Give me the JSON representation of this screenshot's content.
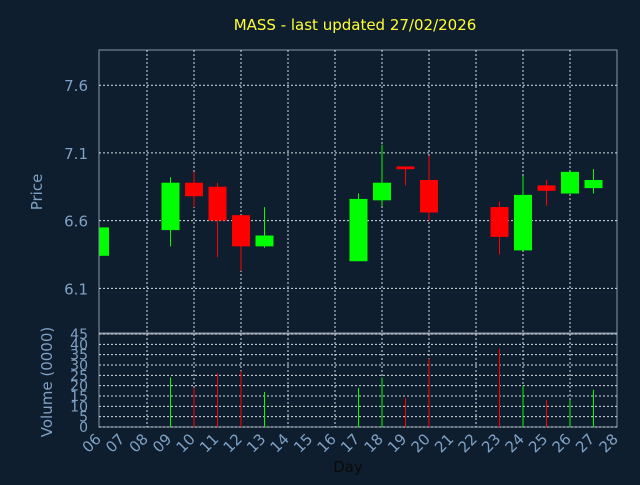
{
  "chart_data": {
    "type": "candlestick",
    "title": "MASS - last updated 27/02/2026",
    "xlabel": "Day",
    "price_panel": {
      "ylabel": "Price",
      "ylim": [
        5.77,
        7.86
      ],
      "yticks": [
        "6.1",
        "6.6",
        "7.1",
        "7.6"
      ],
      "grid": true
    },
    "volume_panel": {
      "ylabel": "Volume (0000)",
      "ylim": [
        0,
        45
      ],
      "yticks": [
        "0",
        "5",
        "10",
        "15",
        "20",
        "25",
        "30",
        "35",
        "40",
        "45"
      ],
      "grid": true
    },
    "x_ticks": [
      "06",
      "07",
      "08",
      "09",
      "10",
      "11",
      "12",
      "13",
      "14",
      "15",
      "16",
      "17",
      "18",
      "19",
      "20",
      "21",
      "22",
      "23",
      "24",
      "25",
      "26",
      "27",
      "28"
    ],
    "up_color": "#00ff00",
    "down_color": "#ff0000",
    "candles": [
      {
        "day": "06",
        "open": 6.34,
        "close": 6.55,
        "high": 6.55,
        "low": 6.34,
        "volume": 0
      },
      {
        "day": "09",
        "open": 6.53,
        "close": 6.88,
        "high": 6.92,
        "low": 6.41,
        "volume": 24
      },
      {
        "day": "10",
        "open": 6.88,
        "close": 6.78,
        "high": 6.96,
        "low": 6.7,
        "volume": 19
      },
      {
        "day": "11",
        "open": 6.85,
        "close": 6.6,
        "high": 6.88,
        "low": 6.33,
        "volume": 26
      },
      {
        "day": "12",
        "open": 6.64,
        "close": 6.41,
        "high": 6.64,
        "low": 6.23,
        "volume": 27
      },
      {
        "day": "13",
        "open": 6.41,
        "close": 6.49,
        "high": 6.7,
        "low": 6.4,
        "volume": 17
      },
      {
        "day": "17",
        "open": 6.3,
        "close": 6.76,
        "high": 6.8,
        "low": 6.3,
        "volume": 19
      },
      {
        "day": "18",
        "open": 6.75,
        "close": 6.88,
        "high": 7.16,
        "low": 6.71,
        "volume": 24
      },
      {
        "day": "19",
        "open": 7.0,
        "close": 6.98,
        "high": 7.0,
        "low": 6.86,
        "volume": 14
      },
      {
        "day": "20",
        "open": 6.9,
        "close": 6.66,
        "high": 7.08,
        "low": 6.6,
        "volume": 33
      },
      {
        "day": "23",
        "open": 6.7,
        "close": 6.48,
        "high": 6.74,
        "low": 6.35,
        "volume": 38
      },
      {
        "day": "24",
        "open": 6.38,
        "close": 6.79,
        "high": 6.93,
        "low": 6.38,
        "volume": 20
      },
      {
        "day": "25",
        "open": 6.86,
        "close": 6.82,
        "high": 6.9,
        "low": 6.71,
        "volume": 13
      },
      {
        "day": "26",
        "open": 6.8,
        "close": 6.96,
        "high": 6.96,
        "low": 6.8,
        "volume": 13
      },
      {
        "day": "27",
        "open": 6.84,
        "close": 6.9,
        "high": 6.98,
        "low": 6.8,
        "volume": 18
      }
    ]
  }
}
